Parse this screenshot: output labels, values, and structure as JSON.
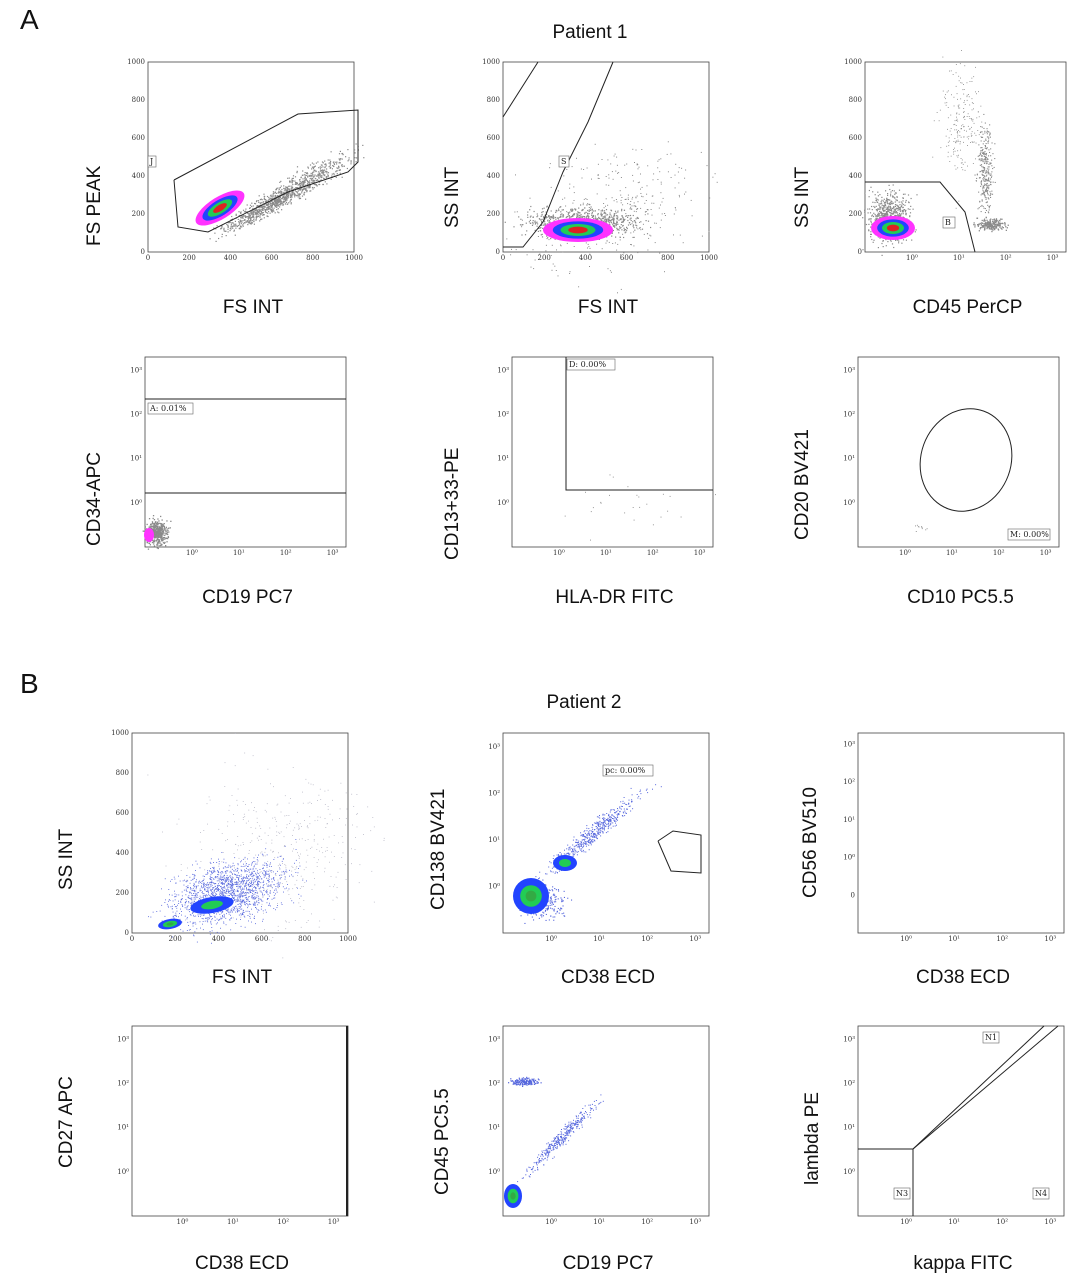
{
  "panel_letters": [
    "A",
    "B"
  ],
  "patient_titles": [
    "Patient 1",
    "Patient 2"
  ],
  "plots": [
    {
      "id": "p1",
      "xlabel": "FS INT",
      "ylabel": "FS PEAK",
      "xticks": [
        "0",
        "200",
        "400",
        "600",
        "800",
        "1000"
      ],
      "yticks": [
        "0",
        "200",
        "400",
        "600",
        "800",
        "1000"
      ],
      "gates": [
        "J"
      ]
    },
    {
      "id": "p2",
      "xlabel": "FS INT",
      "ylabel": "SS INT",
      "xticks": [
        "0",
        "200",
        "400",
        "600",
        "800",
        "1000"
      ],
      "yticks": [
        "0",
        "200",
        "400",
        "600",
        "800",
        "1000"
      ],
      "gates": [
        "S"
      ]
    },
    {
      "id": "p3",
      "xlabel": "CD45 PerCP",
      "ylabel": "SS INT",
      "xticks": [
        "10⁰",
        "10¹",
        "10²",
        "10³"
      ],
      "yticks": [
        "0",
        "200",
        "400",
        "600",
        "800",
        "1000"
      ],
      "gates": [
        "B"
      ]
    },
    {
      "id": "p4",
      "xlabel": "CD19 PC7",
      "ylabel": "CD34-APC",
      "xticks": [
        "10⁰",
        "10¹",
        "10²",
        "10³"
      ],
      "yticks": [
        "10⁰",
        "10¹",
        "10²",
        "10³"
      ],
      "gates": [
        "A: 0.01%"
      ]
    },
    {
      "id": "p5",
      "xlabel": "HLA-DR FITC",
      "ylabel": "CD13+33-PE",
      "xticks": [
        "10⁰",
        "10¹",
        "10²",
        "10³"
      ],
      "yticks": [
        "10⁰",
        "10¹",
        "10²",
        "10³"
      ],
      "gates": [
        "D: 0.00%"
      ]
    },
    {
      "id": "p6",
      "xlabel": "CD10 PC5.5",
      "ylabel": "CD20 BV421",
      "xticks": [
        "10⁰",
        "10¹",
        "10²",
        "10³"
      ],
      "yticks": [
        "10⁰",
        "10¹",
        "10²",
        "10³"
      ],
      "gates": [
        "M: 0.00%"
      ]
    },
    {
      "id": "p7",
      "xlabel": "FS INT",
      "ylabel": "SS INT",
      "xticks": [
        "0",
        "200",
        "400",
        "600",
        "800",
        "1000"
      ],
      "yticks": [
        "0",
        "200",
        "400",
        "600",
        "800",
        "1000"
      ],
      "gates": []
    },
    {
      "id": "p8",
      "xlabel": "CD38 ECD",
      "ylabel": "CD138 BV421",
      "xticks": [
        "10⁰",
        "10¹",
        "10²",
        "10³"
      ],
      "yticks": [
        "10⁰",
        "10¹",
        "10²",
        "10³"
      ],
      "gates": [
        "pc: 0.00%"
      ]
    },
    {
      "id": "p9",
      "xlabel": "CD38 ECD",
      "ylabel": "CD56 BV510",
      "xticks": [
        "10⁰",
        "10¹",
        "10²",
        "10³"
      ],
      "yticks": [
        "0",
        "10⁰",
        "10¹",
        "10²",
        "10³"
      ],
      "gates": []
    },
    {
      "id": "p10",
      "xlabel": "CD38 ECD",
      "ylabel": "CD27 APC",
      "xticks": [
        "10⁰",
        "10¹",
        "10²",
        "10³"
      ],
      "yticks": [
        "10⁰",
        "10¹",
        "10²",
        "10³"
      ],
      "gates": []
    },
    {
      "id": "p11",
      "xlabel": "CD19 PC7",
      "ylabel": "CD45 PC5.5",
      "xticks": [
        "10⁰",
        "10¹",
        "10²",
        "10³"
      ],
      "yticks": [
        "10⁰",
        "10¹",
        "10²",
        "10³"
      ],
      "gates": []
    },
    {
      "id": "p12",
      "xlabel": "kappa FITC",
      "ylabel": "lambda PE",
      "xticks": [
        "10⁰",
        "10¹",
        "10²",
        "10³"
      ],
      "yticks": [
        "10⁰",
        "10¹",
        "10²",
        "10³"
      ],
      "gates": [
        "N1",
        "N3",
        "N4"
      ]
    }
  ],
  "colors": {
    "density_grey": "#8a8a8a",
    "density_magenta": "#ff33ff",
    "density_blue": "#2244ff",
    "density_green": "#22cc55",
    "density_red": "#dd2222",
    "sparse_blue": "#5566dd"
  },
  "chart_data": {
    "type": "scatter",
    "description_note": "",
    "panels": [
      "A",
      "B"
    ]
  }
}
